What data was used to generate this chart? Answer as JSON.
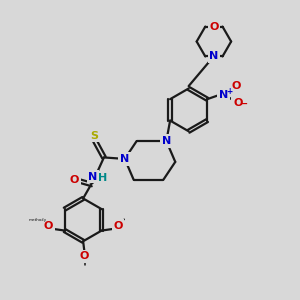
{
  "bg": "#d8d8d8",
  "bond_color": "#1a1a1a",
  "lw": 1.6,
  "colors": {
    "O": "#cc0000",
    "N": "#0000cc",
    "S": "#aaaa00",
    "H": "#008888",
    "C": "#111111"
  },
  "fs": 8.0,
  "xlim": [
    0,
    10
  ],
  "ylim": [
    0,
    10
  ]
}
